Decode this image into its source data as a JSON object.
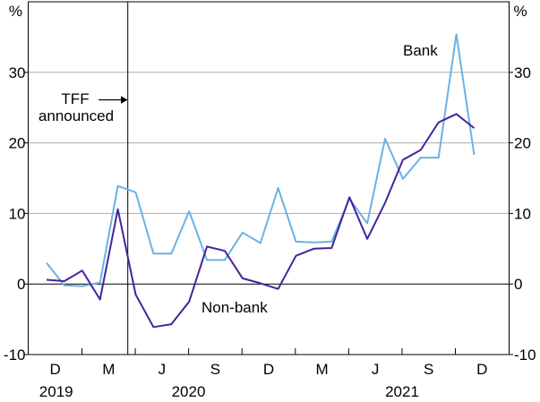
{
  "chart_data": {
    "type": "line",
    "title": "",
    "unit_label": "%",
    "ylim": [
      -10,
      40
    ],
    "y_ticks": [
      -10,
      0,
      10,
      20,
      30
    ],
    "gridlines": [
      10,
      20,
      30
    ],
    "zero_line": true,
    "grid_on": true,
    "legend_position": "inline-labels-on-lines",
    "x_tick_labels": [
      "D",
      "M",
      "J",
      "S",
      "D",
      "M",
      "J",
      "S",
      "D"
    ],
    "year_labels": [
      "2019",
      "2020",
      "2021"
    ],
    "months": [
      "Dec 2019",
      "Jan 2020",
      "Feb 2020",
      "Mar 2020",
      "Apr 2020",
      "May 2020",
      "Jun 2020",
      "Jul 2020",
      "Aug 2020",
      "Sep 2020",
      "Oct 2020",
      "Nov 2020",
      "Dec 2020",
      "Jan 2021",
      "Feb 2021",
      "Mar 2021",
      "Apr 2021",
      "May 2021",
      "Jun 2021",
      "Jul 2021",
      "Aug 2021",
      "Sep 2021",
      "Oct 2021",
      "Nov 2021",
      "Dec 2021"
    ],
    "series": [
      {
        "name": "Bank",
        "color": "#6BB2E2",
        "values": [
          3.0,
          -0.2,
          -0.3,
          0.2,
          13.9,
          13.0,
          4.3,
          4.3,
          10.3,
          3.4,
          3.4,
          7.3,
          5.8,
          13.6,
          6.0,
          5.9,
          6.0,
          12.1,
          8.6,
          20.6,
          14.9,
          17.9,
          17.9,
          35.4,
          18.3
        ]
      },
      {
        "name": "Non-bank",
        "color": "#44249C",
        "values": [
          0.6,
          0.4,
          1.9,
          -2.2,
          10.6,
          -1.5,
          -6.1,
          -5.7,
          -2.5,
          5.3,
          4.7,
          0.8,
          0.1,
          -0.7,
          4.0,
          5.0,
          5.1,
          12.3,
          6.4,
          11.5,
          17.6,
          19.0,
          22.9,
          24.1,
          22.1
        ]
      }
    ],
    "annotation": {
      "line1": "TFF",
      "line2": "announced"
    },
    "axis_color": "#000000",
    "gridline_color": "#ADADAD"
  }
}
